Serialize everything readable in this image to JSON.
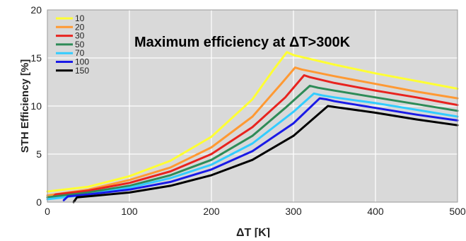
{
  "chart_data": {
    "type": "line",
    "title": "",
    "annotation": "Maximum efficiency at ΔT>300K",
    "xlabel": "ΔT [K]",
    "ylabel": "STH Efficiency [%]",
    "xlim": [
      0,
      500
    ],
    "ylim": [
      0,
      20
    ],
    "x_ticks": [
      0,
      100,
      200,
      300,
      400,
      500
    ],
    "x_tick_labels": [
      "0",
      "100",
      "200",
      "300",
      "400",
      "500"
    ],
    "y_ticks": [
      0,
      5,
      10,
      15,
      20
    ],
    "y_tick_labels": [
      "0",
      "5",
      "10",
      "15",
      "20"
    ],
    "grid": true,
    "legend_position": "top-left",
    "series": [
      {
        "name": "10",
        "color": "#ffff33",
        "points": [
          [
            0,
            1.1
          ],
          [
            50,
            1.6
          ],
          [
            100,
            2.7
          ],
          [
            150,
            4.3
          ],
          [
            200,
            6.8
          ],
          [
            250,
            10.7
          ],
          [
            275,
            13.7
          ],
          [
            292,
            15.6
          ],
          [
            300,
            15.3
          ],
          [
            350,
            14.3
          ],
          [
            400,
            13.4
          ],
          [
            450,
            12.6
          ],
          [
            500,
            11.8
          ]
        ]
      },
      {
        "name": "20",
        "color": "#ff9933",
        "points": [
          [
            0,
            0.7
          ],
          [
            50,
            1.3
          ],
          [
            100,
            2.3
          ],
          [
            150,
            3.6
          ],
          [
            200,
            5.7
          ],
          [
            250,
            8.9
          ],
          [
            285,
            12.3
          ],
          [
            302,
            14.0
          ],
          [
            310,
            13.8
          ],
          [
            350,
            13.1
          ],
          [
            400,
            12.3
          ],
          [
            450,
            11.5
          ],
          [
            500,
            10.8
          ]
        ]
      },
      {
        "name": "30",
        "color": "#e8231f",
        "points": [
          [
            5,
            0.4
          ],
          [
            10,
            0.8
          ],
          [
            50,
            1.2
          ],
          [
            100,
            2.0
          ],
          [
            150,
            3.2
          ],
          [
            200,
            5.0
          ],
          [
            250,
            7.8
          ],
          [
            290,
            10.9
          ],
          [
            313,
            13.2
          ],
          [
            320,
            13.0
          ],
          [
            350,
            12.4
          ],
          [
            400,
            11.6
          ],
          [
            450,
            10.9
          ],
          [
            500,
            10.1
          ]
        ]
      },
      {
        "name": "50",
        "color": "#2e8b57",
        "points": [
          [
            0,
            0.5
          ],
          [
            50,
            1.0
          ],
          [
            100,
            1.7
          ],
          [
            150,
            2.8
          ],
          [
            200,
            4.4
          ],
          [
            250,
            6.9
          ],
          [
            290,
            9.8
          ],
          [
            320,
            12.1
          ],
          [
            330,
            11.9
          ],
          [
            350,
            11.6
          ],
          [
            400,
            10.9
          ],
          [
            450,
            10.2
          ],
          [
            500,
            9.5
          ]
        ]
      },
      {
        "name": "70",
        "color": "#33ccff",
        "points": [
          [
            0,
            0.3
          ],
          [
            50,
            0.8
          ],
          [
            100,
            1.5
          ],
          [
            150,
            2.5
          ],
          [
            200,
            3.9
          ],
          [
            250,
            6.1
          ],
          [
            300,
            9.4
          ],
          [
            325,
            11.3
          ],
          [
            335,
            11.1
          ],
          [
            350,
            10.9
          ],
          [
            400,
            10.3
          ],
          [
            450,
            9.6
          ],
          [
            500,
            8.9
          ]
        ]
      },
      {
        "name": "100",
        "color": "#1a1ae6",
        "points": [
          [
            20,
            0.2
          ],
          [
            25,
            0.6
          ],
          [
            50,
            0.8
          ],
          [
            100,
            1.3
          ],
          [
            150,
            2.1
          ],
          [
            200,
            3.4
          ],
          [
            250,
            5.3
          ],
          [
            300,
            8.2
          ],
          [
            332,
            10.8
          ],
          [
            340,
            10.7
          ],
          [
            350,
            10.5
          ],
          [
            400,
            9.8
          ],
          [
            450,
            9.1
          ],
          [
            500,
            8.5
          ]
        ]
      },
      {
        "name": "150",
        "color": "#000000",
        "points": [
          [
            32,
            0.0
          ],
          [
            36,
            0.5
          ],
          [
            50,
            0.6
          ],
          [
            100,
            1.0
          ],
          [
            150,
            1.7
          ],
          [
            200,
            2.8
          ],
          [
            250,
            4.4
          ],
          [
            300,
            6.9
          ],
          [
            342,
            10.0
          ],
          [
            350,
            9.9
          ],
          [
            400,
            9.3
          ],
          [
            450,
            8.6
          ],
          [
            500,
            8.0
          ]
        ]
      }
    ]
  }
}
